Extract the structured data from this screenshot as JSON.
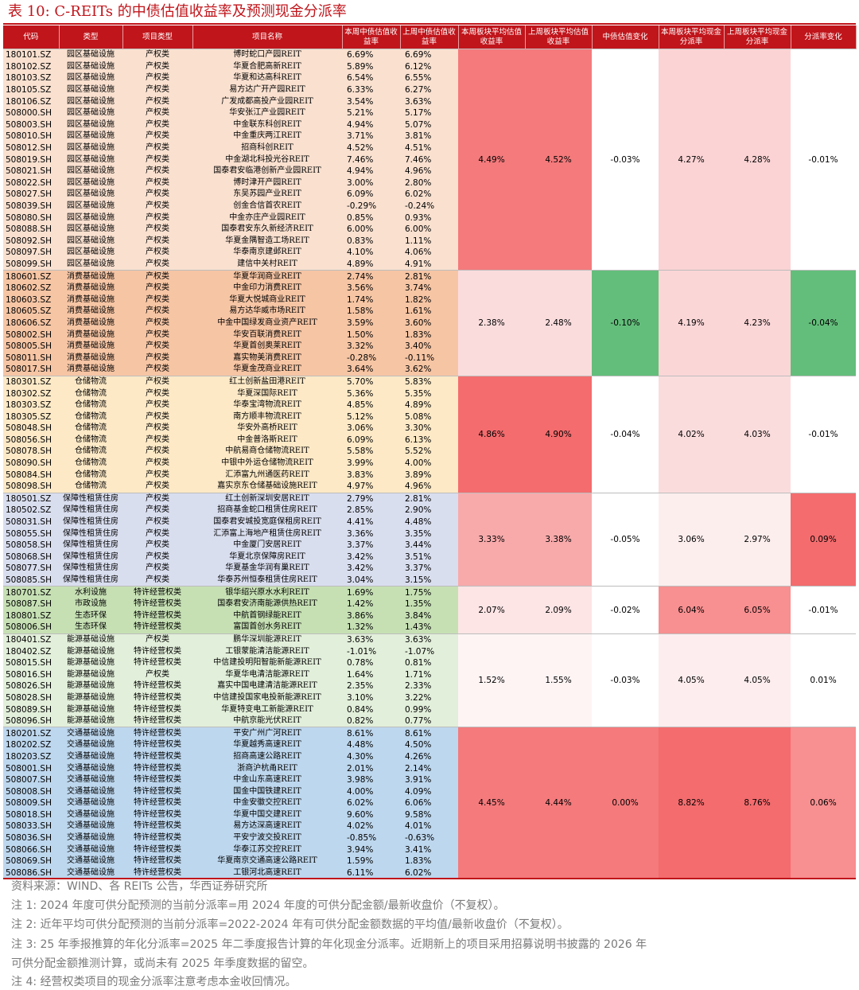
{
  "title": "表 10: C-REITs 的中债估值收益率及预测现金分派率",
  "headers": [
    "代码",
    "类型",
    "项目类型",
    "项目名称",
    "本周中债估值收益率",
    "上周中债估值收益率",
    "本周板块平均估值收益率",
    "上周板块平均估值收益率",
    "中债估值变化",
    "本周板块平均现金分派率",
    "上周板块平均现金分派率",
    "分派率变化"
  ],
  "groups": [
    {
      "name": "园区基础设施",
      "row_color": "#f9e0cf",
      "summary": {
        "avg_yield_this": "4.49%",
        "avg_yield_last": "4.52%",
        "yield_change": "-0.03%",
        "payout_this": "4.27%",
        "payout_last": "4.28%",
        "payout_change": "-0.01%"
      },
      "summary_colors": [
        "#f47a7c",
        "#f47a7c",
        "#ffffff",
        "#fbd3d4",
        "#fbd3d4",
        "#ffffff"
      ],
      "rows": [
        [
          "180101.SZ",
          "园区基础设施",
          "产权类",
          "博时蛇口产园REIT",
          "6.69%",
          "6.69%"
        ],
        [
          "180102.SZ",
          "园区基础设施",
          "产权类",
          "华夏合肥高新REIT",
          "5.89%",
          "6.12%"
        ],
        [
          "180103.SZ",
          "园区基础设施",
          "产权类",
          "华夏和达高科REIT",
          "6.54%",
          "6.55%"
        ],
        [
          "180105.SZ",
          "园区基础设施",
          "产权类",
          "易方达广开产园REIT",
          "6.33%",
          "6.27%"
        ],
        [
          "180106.SZ",
          "园区基础设施",
          "产权类",
          "广发成都高投产业园REIT",
          "3.54%",
          "3.63%"
        ],
        [
          "508000.SH",
          "园区基础设施",
          "产权类",
          "华安张江产业园REIT",
          "5.21%",
          "5.17%"
        ],
        [
          "508003.SH",
          "园区基础设施",
          "产权类",
          "中金联东科创REIT",
          "4.94%",
          "5.07%"
        ],
        [
          "508010.SH",
          "园区基础设施",
          "产权类",
          "中金重庆两江REIT",
          "3.71%",
          "3.81%"
        ],
        [
          "508012.SH",
          "园区基础设施",
          "产权类",
          "招商科创REIT",
          "4.52%",
          "4.51%"
        ],
        [
          "508019.SH",
          "园区基础设施",
          "产权类",
          "中金湖北科投光谷REIT",
          "7.46%",
          "7.46%"
        ],
        [
          "508021.SH",
          "园区基础设施",
          "产权类",
          "国泰君安临港创新产业园REIT",
          "4.94%",
          "4.96%"
        ],
        [
          "508022.SH",
          "园区基础设施",
          "产权类",
          "博时津开产园REIT",
          "3.00%",
          "2.80%"
        ],
        [
          "508027.SH",
          "园区基础设施",
          "产权类",
          "东吴苏园产业REIT",
          "6.09%",
          "6.02%"
        ],
        [
          "508039.SH",
          "园区基础设施",
          "产权类",
          "创金合信首农REIT",
          "-0.29%",
          "-0.24%"
        ],
        [
          "508080.SH",
          "园区基础设施",
          "产权类",
          "中金亦庄产业园REIT",
          "0.85%",
          "0.93%"
        ],
        [
          "508088.SH",
          "园区基础设施",
          "产权类",
          "国泰君安东久新经济REIT",
          "6.00%",
          "6.00%"
        ],
        [
          "508092.SH",
          "园区基础设施",
          "产权类",
          "华夏金隅智造工场REIT",
          "0.83%",
          "1.11%"
        ],
        [
          "508097.SH",
          "园区基础设施",
          "产权类",
          "华泰南京建邺REIT",
          "4.10%",
          "4.06%"
        ],
        [
          "508099.SH",
          "园区基础设施",
          "产权类",
          "建信中关村REIT",
          "4.89%",
          "4.91%"
        ]
      ]
    },
    {
      "name": "消费基础设施",
      "row_color": "#f6c5a4",
      "summary": {
        "avg_yield_this": "2.38%",
        "avg_yield_last": "2.48%",
        "yield_change": "-0.10%",
        "payout_this": "4.19%",
        "payout_last": "4.23%",
        "payout_change": "-0.04%"
      },
      "summary_colors": [
        "#fbdcdd",
        "#fbdcdd",
        "#63be7b",
        "#fbd6d7",
        "#fbd6d7",
        "#63be7b"
      ],
      "rows": [
        [
          "180601.SZ",
          "消费基础设施",
          "产权类",
          "华夏华润商业REIT",
          "2.74%",
          "2.81%"
        ],
        [
          "180602.SZ",
          "消费基础设施",
          "产权类",
          "中金印力消费REIT",
          "3.56%",
          "3.74%"
        ],
        [
          "180603.SZ",
          "消费基础设施",
          "产权类",
          "华夏大悦城商业REIT",
          "1.74%",
          "1.82%"
        ],
        [
          "180605.SZ",
          "消费基础设施",
          "产权类",
          "易方达华威市场REIT",
          "1.58%",
          "1.61%"
        ],
        [
          "180606.SZ",
          "消费基础设施",
          "产权类",
          "中金中国绿发商业资产REIT",
          "3.59%",
          "3.60%"
        ],
        [
          "508002.SH",
          "消费基础设施",
          "产权类",
          "华安百联消费REIT",
          "1.50%",
          "1.83%"
        ],
        [
          "508005.SH",
          "消费基础设施",
          "产权类",
          "华夏首创奥莱REIT",
          "3.32%",
          "3.40%"
        ],
        [
          "508011.SH",
          "消费基础设施",
          "产权类",
          "嘉实物美消费REIT",
          "-0.28%",
          "-0.11%"
        ],
        [
          "508017.SH",
          "消费基础设施",
          "产权类",
          "华夏金茂商业REIT",
          "3.64%",
          "3.62%"
        ]
      ]
    },
    {
      "name": "仓储物流",
      "row_color": "#fde9c6",
      "summary": {
        "avg_yield_this": "4.86%",
        "avg_yield_last": "4.90%",
        "yield_change": "-0.04%",
        "payout_this": "4.02%",
        "payout_last": "4.03%",
        "payout_change": "-0.01%"
      },
      "summary_colors": [
        "#f46c6e",
        "#f46c6e",
        "#ffffff",
        "#fbdcdd",
        "#fbdcdd",
        "#ffffff"
      ],
      "rows": [
        [
          "180301.SZ",
          "仓储物流",
          "产权类",
          "红土创新盐田港REIT",
          "5.70%",
          "5.83%"
        ],
        [
          "180302.SZ",
          "仓储物流",
          "产权类",
          "华夏深国际REIT",
          "5.36%",
          "5.35%"
        ],
        [
          "180303.SZ",
          "仓储物流",
          "产权类",
          "华泰宝湾物流REIT",
          "4.85%",
          "4.89%"
        ],
        [
          "180305.SZ",
          "仓储物流",
          "产权类",
          "南方顺丰物流REIT",
          "5.12%",
          "5.08%"
        ],
        [
          "508048.SH",
          "仓储物流",
          "产权类",
          "华安外高桥REIT",
          "3.06%",
          "3.30%"
        ],
        [
          "508056.SH",
          "仓储物流",
          "产权类",
          "中金普洛斯REIT",
          "6.09%",
          "6.13%"
        ],
        [
          "508078.SH",
          "仓储物流",
          "产权类",
          "中航易商仓储物流REIT",
          "5.58%",
          "5.52%"
        ],
        [
          "508090.SH",
          "仓储物流",
          "产权类",
          "中银中外运仓储物流REIT",
          "3.99%",
          "4.00%"
        ],
        [
          "508084.SH",
          "仓储物流",
          "产权类",
          "汇添富九州通医药REIT",
          "3.83%",
          "3.89%"
        ],
        [
          "508098.SH",
          "仓储物流",
          "产权类",
          "嘉实京东仓储基础设施REIT",
          "4.97%",
          "4.96%"
        ]
      ]
    },
    {
      "name": "保障性租赁住房",
      "row_color": "#d9deef",
      "summary": {
        "avg_yield_this": "3.33%",
        "avg_yield_last": "3.38%",
        "yield_change": "-0.05%",
        "payout_this": "3.06%",
        "payout_last": "2.97%",
        "payout_change": "0.09%"
      },
      "summary_colors": [
        "#f8aaab",
        "#f8aaab",
        "#ffffff",
        "#fdeeee",
        "#fdeeee",
        "#f46c6e"
      ],
      "rows": [
        [
          "180501.SZ",
          "保障性租赁住房",
          "产权类",
          "红土创新深圳安居REIT",
          "2.79%",
          "2.81%"
        ],
        [
          "180502.SZ",
          "保障性租赁住房",
          "产权类",
          "招商基金蛇口租赁住房REIT",
          "2.85%",
          "2.90%"
        ],
        [
          "508031.SH",
          "保障性租赁住房",
          "产权类",
          "国泰君安城投宽庭保租房REIT",
          "4.41%",
          "4.48%"
        ],
        [
          "508055.SH",
          "保障性租赁住房",
          "产权类",
          "汇添富上海地产租赁住房REIT",
          "3.36%",
          "3.35%"
        ],
        [
          "508058.SH",
          "保障性租赁住房",
          "产权类",
          "中金厦门安居REIT",
          "3.37%",
          "3.44%"
        ],
        [
          "508068.SH",
          "保障性租赁住房",
          "产权类",
          "华夏北京保障房REIT",
          "3.42%",
          "3.51%"
        ],
        [
          "508077.SH",
          "保障性租赁住房",
          "产权类",
          "华夏基金华润有巢REIT",
          "3.42%",
          "3.37%"
        ],
        [
          "508085.SH",
          "保障性租赁住房",
          "产权类",
          "华泰苏州恒泰租赁住房REIT",
          "3.04%",
          "3.15%"
        ]
      ]
    },
    {
      "name": "水利设施",
      "row_color": "#c6e0b4",
      "summary": {
        "avg_yield_this": "2.07%",
        "avg_yield_last": "2.09%",
        "yield_change": "-0.02%",
        "payout_this": "6.04%",
        "payout_last": "6.05%",
        "payout_change": "-0.01%"
      },
      "summary_colors": [
        "#fde4e5",
        "#fde4e5",
        "#ffffff",
        "#f88f90",
        "#f88f90",
        "#ffffff"
      ],
      "rows": [
        [
          "180701.SZ",
          "水利设施",
          "特许经营权类",
          "银华绍兴原水水利REIT",
          "1.69%",
          "1.75%"
        ],
        [
          "508087.SH",
          "市政设施",
          "特许经营权类",
          "国泰君安济南能源供热REIT",
          "1.42%",
          "1.35%"
        ],
        [
          "180801.SZ",
          "生态环保",
          "特许经营权类",
          "中航首钢绿能REIT",
          "3.86%",
          "3.84%"
        ],
        [
          "508006.SH",
          "生态环保",
          "特许经营权类",
          "富国首创水务REIT",
          "1.32%",
          "1.43%"
        ]
      ]
    },
    {
      "name": "能源基础设施",
      "row_color": "#e2efda",
      "summary": {
        "avg_yield_this": "1.52%",
        "avg_yield_last": "1.55%",
        "yield_change": "-0.03%",
        "payout_this": "4.05%",
        "payout_last": "4.05%",
        "payout_change": "0.01%"
      },
      "summary_colors": [
        "#fef4f4",
        "#fef4f4",
        "#ffffff",
        "#fdedee",
        "#fdedee",
        "#ffffff"
      ],
      "rows": [
        [
          "180401.SZ",
          "能源基础设施",
          "产权类",
          "鹏华深圳能源REIT",
          "3.63%",
          "3.63%"
        ],
        [
          "180402.SZ",
          "能源基础设施",
          "特许经营权类",
          "工银蒙能清洁能源REIT",
          "-1.01%",
          "-1.07%"
        ],
        [
          "508015.SH",
          "能源基础设施",
          "特许经营权类",
          "中信建投明阳智能新能源REIT",
          "0.78%",
          "0.81%"
        ],
        [
          "508016.SH",
          "能源基础设施",
          "产权类",
          "华夏华电清洁能源REIT",
          "1.64%",
          "1.71%"
        ],
        [
          "508026.SH",
          "能源基础设施",
          "特许经营权类",
          "嘉实中国电建清洁能源REIT",
          "2.35%",
          "2.33%"
        ],
        [
          "508028.SH",
          "能源基础设施",
          "特许经营权类",
          "中信建投国家电投新能源REIT",
          "3.10%",
          "3.22%"
        ],
        [
          "508089.SH",
          "能源基础设施",
          "特许经营权类",
          "华夏特变电工新能源REIT",
          "0.84%",
          "0.99%"
        ],
        [
          "508096.SH",
          "能源基础设施",
          "特许经营权类",
          "中航京能光伏REIT",
          "0.82%",
          "0.77%"
        ]
      ]
    },
    {
      "name": "交通基础设施",
      "row_color": "#bdd7ee",
      "summary": {
        "avg_yield_this": "4.45%",
        "avg_yield_last": "4.44%",
        "yield_change": "0.00%",
        "payout_this": "8.82%",
        "payout_last": "8.76%",
        "payout_change": "0.06%"
      },
      "summary_colors": [
        "#f47a7c",
        "#f47a7c",
        "#f47a7c",
        "#f46c6e",
        "#f46c6e",
        "#f88f90"
      ],
      "rows": [
        [
          "180201.SZ",
          "交通基础设施",
          "特许经营权类",
          "平安广州广河REIT",
          "8.61%",
          "8.61%"
        ],
        [
          "180202.SZ",
          "交通基础设施",
          "特许经营权类",
          "华夏越秀高速REIT",
          "4.48%",
          "4.50%"
        ],
        [
          "180203.SZ",
          "交通基础设施",
          "特许经营权类",
          "招商高速公路REIT",
          "4.30%",
          "4.26%"
        ],
        [
          "508001.SH",
          "交通基础设施",
          "特许经营权类",
          "浙商沪杭甬REIT",
          "2.01%",
          "2.14%"
        ],
        [
          "508007.SH",
          "交通基础设施",
          "特许经营权类",
          "中金山东高速REIT",
          "3.98%",
          "3.91%"
        ],
        [
          "508008.SH",
          "交通基础设施",
          "特许经营权类",
          "国金中国铁建REIT",
          "4.00%",
          "4.09%"
        ],
        [
          "508009.SH",
          "交通基础设施",
          "特许经营权类",
          "中金安徽交控REIT",
          "6.02%",
          "6.06%"
        ],
        [
          "508018.SH",
          "交通基础设施",
          "特许经营权类",
          "华夏中国交建REIT",
          "9.60%",
          "9.58%"
        ],
        [
          "508033.SH",
          "交通基础设施",
          "特许经营权类",
          "易方达深高速REIT",
          "4.02%",
          "4.01%"
        ],
        [
          "508036.SH",
          "交通基础设施",
          "特许经营权类",
          "平安宁波交投REIT",
          "-0.85%",
          "-0.63%"
        ],
        [
          "508066.SH",
          "交通基础设施",
          "特许经营权类",
          "华泰江苏交控REIT",
          "3.94%",
          "3.41%"
        ],
        [
          "508069.SH",
          "交通基础设施",
          "特许经营权类",
          "华夏南京交通高速公路REIT",
          "1.59%",
          "1.83%"
        ],
        [
          "508086.SH",
          "交通基础设施",
          "特许经营权类",
          "工银河北高速REIT",
          "6.11%",
          "6.02%"
        ]
      ]
    }
  ],
  "notes": [
    "资料来源：WIND、各 REITs 公告，华西证券研究所",
    "注 1:  2024 年度可供分配预测的当前分派率=用 2024 年度的可供分配金额/最新收盘价（不复权）。",
    "注 2:  近年平均可供分配预测的当前分派率=2022-2024 年有可供分配金额数据的平均值/最新收盘价（不复权）。",
    "注 3:  25 年季报推算的年化分派率=2025 年二季度报告计算的年化现金分派率。近期新上的项目采用招募说明书披露的 2026 年",
    "可供分配金额推测计算，或尚未有 2025 年季度数据的留空。",
    "注 4:  经营权类项目的现金分派率注意考虑本金收回情况。"
  ]
}
